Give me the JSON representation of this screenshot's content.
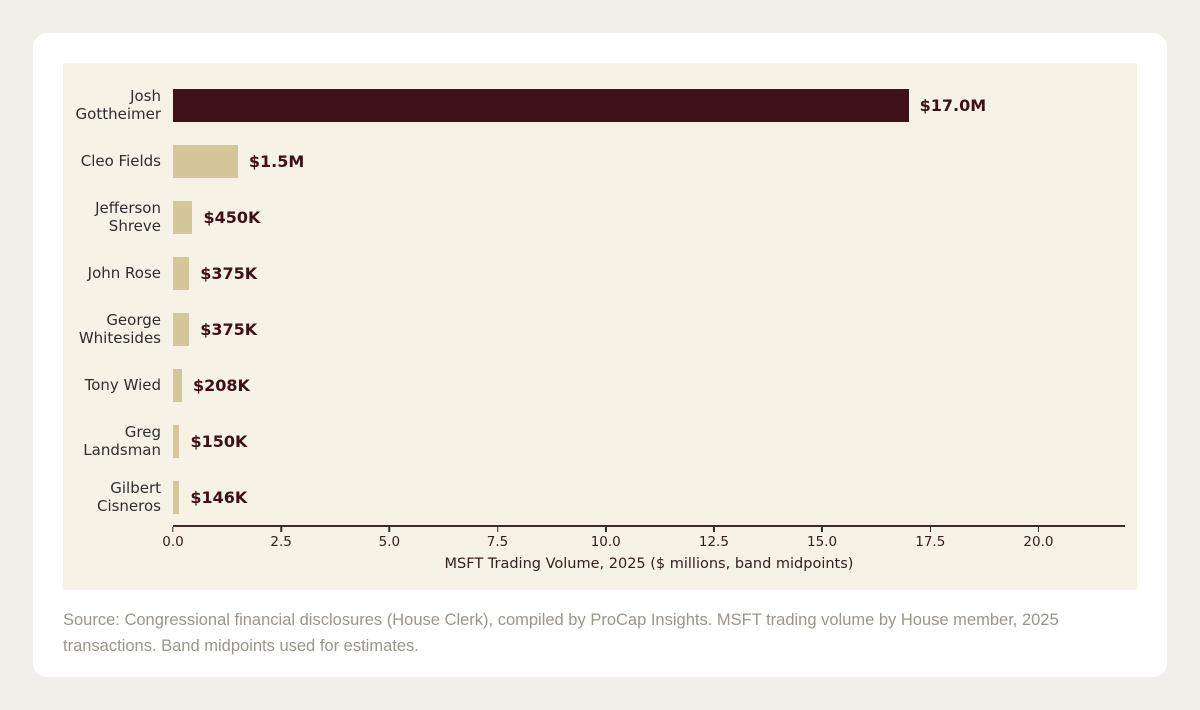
{
  "chart_data": {
    "type": "bar",
    "orientation": "horizontal",
    "categories": [
      "Josh Gottheimer",
      "Cleo Fields",
      "Jefferson Shreve",
      "John Rose",
      "George Whitesides",
      "Tony Wied",
      "Greg Landsman",
      "Gilbert Cisneros"
    ],
    "values": [
      17.0,
      1.5,
      0.45,
      0.375,
      0.375,
      0.208,
      0.15,
      0.146
    ],
    "value_labels": [
      "$17.0M",
      "$1.5M",
      "$450K",
      "$375K",
      "$375K",
      "$208K",
      "$150K",
      "$146K"
    ],
    "title": "",
    "xlabel": "MSFT Trading Volume, 2025 ($ millions, band midpoints)",
    "ylabel": "",
    "xlim": [
      0,
      22
    ],
    "xticks": [
      {
        "value": 0,
        "label": "0.0"
      },
      {
        "value": 2.5,
        "label": "2.5"
      },
      {
        "value": 5,
        "label": "5.0"
      },
      {
        "value": 7.5,
        "label": "7.5"
      },
      {
        "value": 10,
        "label": "10.0"
      },
      {
        "value": 12.5,
        "label": "12.5"
      },
      {
        "value": 15,
        "label": "15.0"
      },
      {
        "value": 17.5,
        "label": "17.5"
      },
      {
        "value": 20,
        "label": "20.0"
      }
    ],
    "highlight_index": 0,
    "grid": false,
    "legend": null
  },
  "colors": {
    "page_bg": "#f1efe9",
    "card_bg": "#ffffff",
    "chart_bg": "#f7f2e6",
    "bar_highlight": "#3e1118",
    "bar_default": "#d5c69a",
    "value_label": "#3e1118",
    "category_label": "#2e2e2e",
    "tick_label": "#33201f",
    "axis_line": "#3a2b2b",
    "source_text": "#9b958c"
  },
  "source_note": "Source: Congressional financial disclosures (House Clerk), compiled by ProCap Insights. MSFT trading volume by House member, 2025 transactions. Band midpoints used for estimates."
}
